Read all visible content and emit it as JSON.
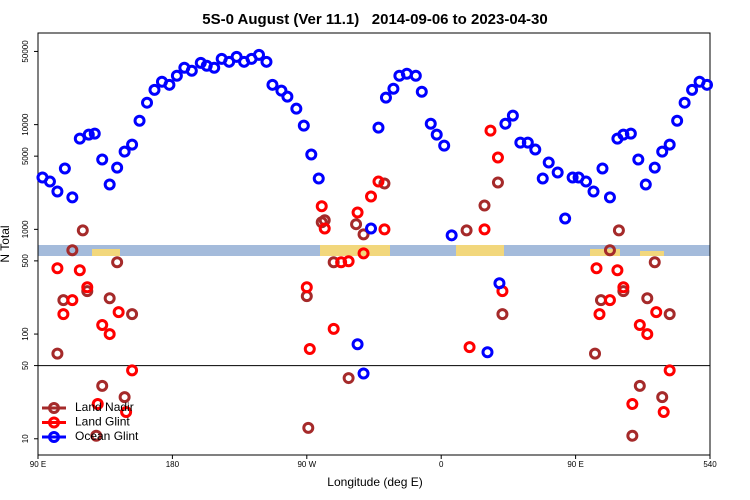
{
  "chart_data": {
    "type": "scatter",
    "title": "5S-0 August (Ver 11.1)   2014-09-06 to 2023-04-30",
    "x_label": "Longitude (deg E)",
    "y_label": "N Total",
    "xlim": [
      90,
      540
    ],
    "ylim": [
      7,
      75000
    ],
    "log_y": true,
    "hline": 50,
    "legend": "lower left",
    "xticks": [
      {
        "value": 90,
        "label": "90 E"
      },
      180,
      {
        "value": 270,
        "label": "90 W"
      },
      {
        "value": 360,
        "label": "0"
      },
      {
        "value": 450,
        "label": "90 E"
      },
      540
    ],
    "yticks": [
      10,
      50,
      100,
      500,
      1000,
      5000,
      10000,
      50000
    ],
    "series": [
      {
        "name": "Land Nadir",
        "color": "#a52a2a",
        "x": [
          103,
          107,
          113,
          120,
          123,
          129,
          133,
          138,
          143,
          148,
          153,
          270,
          271,
          280,
          282,
          288,
          298,
          303,
          308,
          322,
          377,
          389,
          398,
          401,
          463,
          467,
          473,
          479,
          482,
          488,
          493,
          498,
          503,
          508,
          513
        ],
        "values": [
          65,
          211,
          631,
          978,
          257,
          10.7,
          32,
          220,
          485,
          25,
          155,
          230,
          12.7,
          1170,
          1220,
          485,
          38,
          1120,
          896,
          2740,
          978,
          1690,
          2800,
          155,
          65,
          211,
          631,
          978,
          257,
          10.7,
          32,
          220,
          485,
          25,
          155
        ]
      },
      {
        "name": "Land Glint",
        "color": "#ff0000",
        "x": [
          103,
          107,
          113,
          118,
          123,
          130,
          133,
          138,
          144,
          149,
          153,
          270,
          272,
          280,
          282,
          288,
          293,
          298,
          304,
          308,
          313,
          318,
          322,
          379,
          389,
          393,
          398,
          401,
          464,
          466,
          473,
          478,
          482,
          488,
          493,
          498,
          504,
          509,
          513
        ],
        "values": [
          425,
          155,
          211,
          407,
          280,
          21.5,
          122,
          100,
          162,
          18,
          45,
          280,
          72,
          1660,
          1020,
          112,
          485,
          496,
          1450,
          590,
          2060,
          2860,
          1000,
          75,
          1000,
          8770,
          4850,
          257,
          425,
          155,
          211,
          407,
          280,
          21.5,
          122,
          100,
          162,
          18,
          45
        ]
      },
      {
        "name": "Ocean Glint",
        "color": "#0000ff",
        "x": [
          93,
          98,
          103,
          108,
          113,
          118,
          124,
          128,
          133,
          138,
          143,
          148,
          153,
          158,
          163,
          168,
          173,
          178,
          183,
          188,
          193,
          199,
          203,
          208,
          213,
          218,
          223,
          228,
          233,
          238,
          243,
          247,
          253,
          257,
          263,
          268,
          273,
          278,
          304,
          308,
          313,
          318,
          323,
          328,
          332,
          337,
          343,
          347,
          353,
          357,
          362,
          367,
          391,
          399,
          403,
          408,
          413,
          418,
          423,
          428,
          432,
          438,
          443,
          448,
          452,
          457,
          462,
          468,
          473,
          478,
          482,
          487,
          492,
          497,
          503,
          508,
          513,
          518,
          523,
          528,
          533,
          538
        ],
        "values": [
          3130,
          2860,
          2300,
          3810,
          2020,
          7360,
          8030,
          8200,
          4640,
          2680,
          3890,
          5530,
          6450,
          10900,
          16200,
          21500,
          25700,
          24000,
          29300,
          34900,
          32700,
          38900,
          36500,
          34900,
          42500,
          39800,
          44400,
          39800,
          42500,
          46400,
          39800,
          24000,
          21100,
          18500,
          14200,
          9780,
          5180,
          3060,
          80,
          42,
          1020,
          9360,
          18100,
          22000,
          29300,
          30600,
          29300,
          20600,
          10200,
          8030,
          6310,
          877,
          67,
          306,
          10200,
          12200,
          6740,
          6740,
          5780,
          3060,
          4350,
          3490,
          1270,
          3130,
          3130,
          2860,
          2300,
          3810,
          2020,
          7360,
          8030,
          8200,
          4640,
          2680,
          3890,
          5530,
          6450,
          10900,
          16200,
          21500,
          25700,
          24000
        ]
      }
    ]
  }
}
